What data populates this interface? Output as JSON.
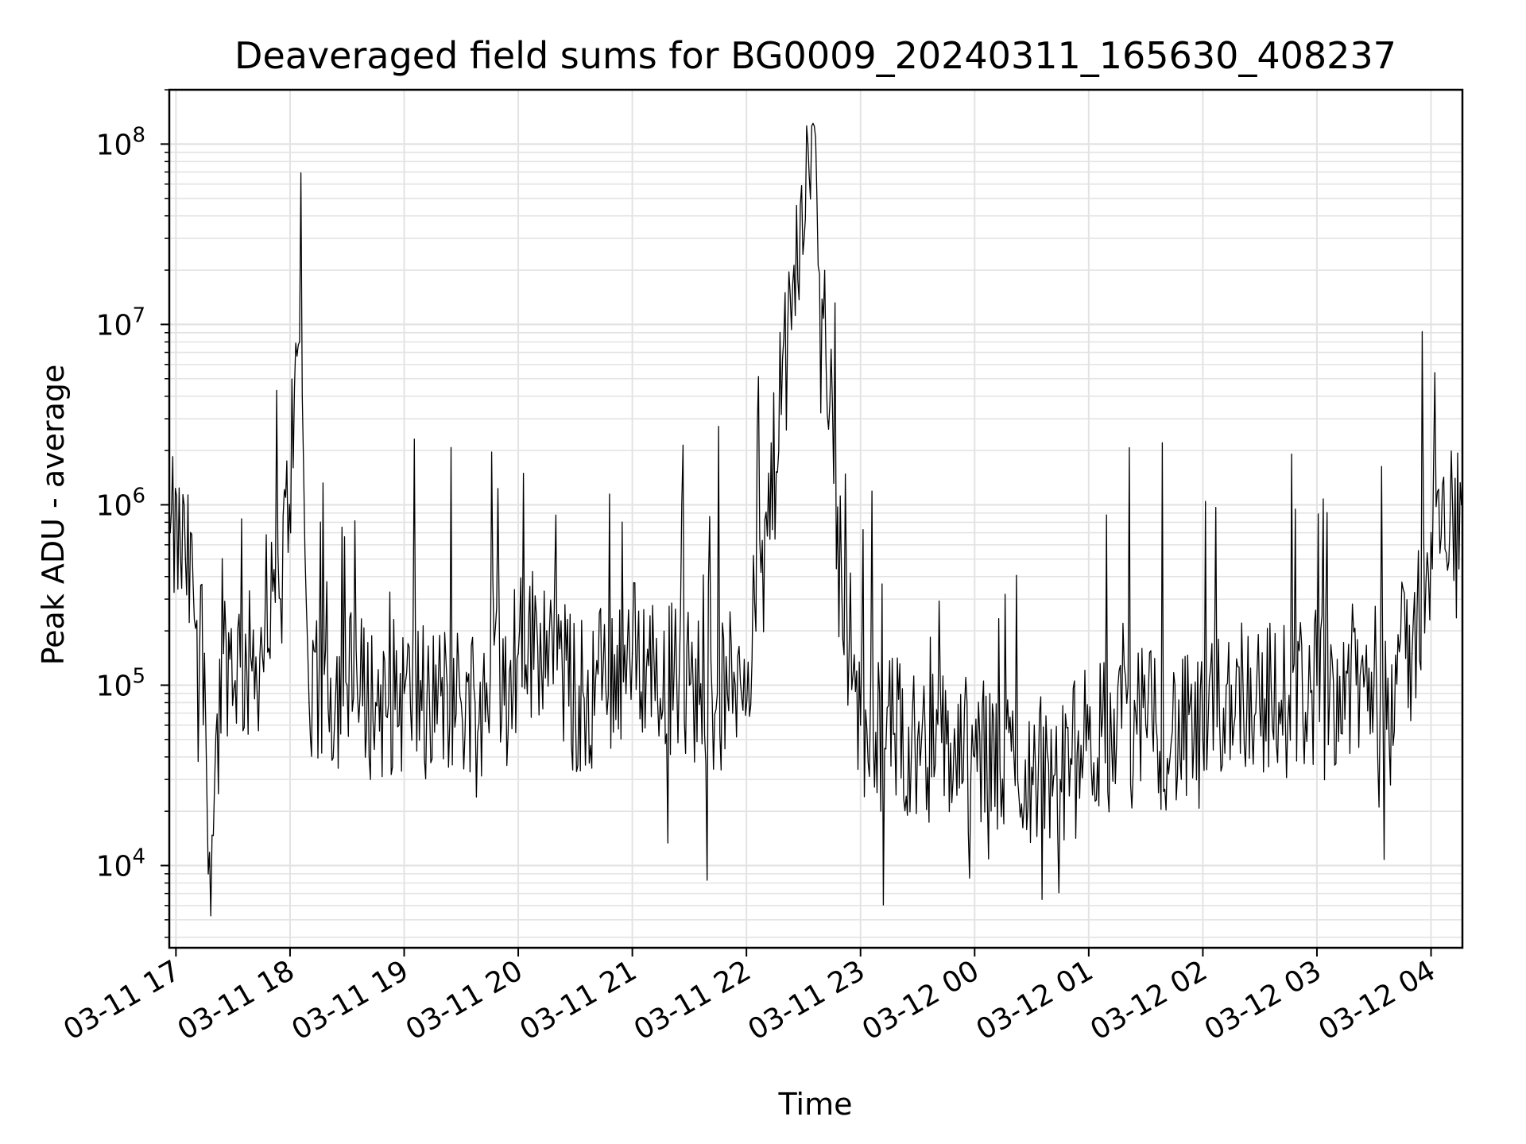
{
  "chart_data": {
    "type": "line",
    "title": "Deaveraged field sums for BG0009_20240311_165630_408237",
    "xlabel": "Time",
    "ylabel": "Peak ADU - average",
    "x_range": [
      "2024-03-11 16:56:30",
      "2024-03-12 04:16:30"
    ],
    "x_ticks": [
      {
        "x": "2024-03-11 17:00",
        "label": "03-11 17"
      },
      {
        "x": "2024-03-11 18:00",
        "label": "03-11 18"
      },
      {
        "x": "2024-03-11 19:00",
        "label": "03-11 19"
      },
      {
        "x": "2024-03-11 20:00",
        "label": "03-11 20"
      },
      {
        "x": "2024-03-11 21:00",
        "label": "03-11 21"
      },
      {
        "x": "2024-03-11 22:00",
        "label": "03-11 22"
      },
      {
        "x": "2024-03-11 23:00",
        "label": "03-11 23"
      },
      {
        "x": "2024-03-12 00:00",
        "label": "03-12 00"
      },
      {
        "x": "2024-03-12 01:00",
        "label": "03-12 01"
      },
      {
        "x": "2024-03-12 02:00",
        "label": "03-12 02"
      },
      {
        "x": "2024-03-12 03:00",
        "label": "03-12 03"
      },
      {
        "x": "2024-03-12 04:00",
        "label": "03-12 04"
      }
    ],
    "y_scale": "log",
    "ylim": [
      3500,
      200000000
    ],
    "y_ticks": [
      {
        "value": 10000,
        "base": "10",
        "exp": "4"
      },
      {
        "value": 100000,
        "base": "10",
        "exp": "5"
      },
      {
        "value": 1000000,
        "base": "10",
        "exp": "6"
      },
      {
        "value": 10000000,
        "base": "10",
        "exp": "7"
      },
      {
        "value": 100000000,
        "base": "10",
        "exp": "8"
      }
    ],
    "grid": true,
    "line_color": "#000000",
    "grid_color": "#e3e3e3",
    "series": [
      {
        "values": [
          {
            "x": "2024-03-11 16:57",
            "y": 700000
          },
          {
            "x": "2024-03-11 17:05",
            "y": 500000
          },
          {
            "x": "2024-03-11 17:15",
            "y": 150000
          },
          {
            "x": "2024-03-11 17:17",
            "y": 9000
          },
          {
            "x": "2024-03-11 17:25",
            "y": 150000
          },
          {
            "x": "2024-03-11 17:40",
            "y": 120000
          },
          {
            "x": "2024-03-11 17:55",
            "y": 300000
          },
          {
            "x": "2024-03-11 18:05",
            "y": 8000000
          },
          {
            "x": "2024-03-11 18:10",
            "y": 80000
          },
          {
            "x": "2024-03-11 18:30",
            "y": 100000
          },
          {
            "x": "2024-03-11 18:45",
            "y": 80000
          },
          {
            "x": "2024-03-11 19:00",
            "y": 90000
          },
          {
            "x": "2024-03-11 19:30",
            "y": 80000
          },
          {
            "x": "2024-03-11 20:00",
            "y": 150000
          },
          {
            "x": "2024-03-11 20:15",
            "y": 200000
          },
          {
            "x": "2024-03-11 20:30",
            "y": 80000
          },
          {
            "x": "2024-03-11 21:00",
            "y": 150000
          },
          {
            "x": "2024-03-11 21:30",
            "y": 100000
          },
          {
            "x": "2024-03-11 21:50",
            "y": 90000
          },
          {
            "x": "2024-03-11 22:05",
            "y": 200000
          },
          {
            "x": "2024-03-11 22:35",
            "y": 130000000
          },
          {
            "x": "2024-03-11 22:50",
            "y": 400000
          },
          {
            "x": "2024-03-11 23:00",
            "y": 60000
          },
          {
            "x": "2024-03-11 23:30",
            "y": 50000
          },
          {
            "x": "2024-03-12 00:00",
            "y": 40000
          },
          {
            "x": "2024-03-12 00:30",
            "y": 35000
          },
          {
            "x": "2024-03-12 00:45",
            "y": 30000
          },
          {
            "x": "2024-03-12 01:00",
            "y": 50000
          },
          {
            "x": "2024-03-12 01:30",
            "y": 60000
          },
          {
            "x": "2024-03-12 02:00",
            "y": 50000
          },
          {
            "x": "2024-03-12 02:15",
            "y": 100000
          },
          {
            "x": "2024-03-12 02:40",
            "y": 80000
          },
          {
            "x": "2024-03-12 03:00",
            "y": 100000
          },
          {
            "x": "2024-03-12 03:30",
            "y": 100000
          },
          {
            "x": "2024-03-12 03:50",
            "y": 150000
          },
          {
            "x": "2024-03-12 04:00",
            "y": 700000
          },
          {
            "x": "2024-03-12 04:10",
            "y": 800000
          },
          {
            "x": "2024-03-12 04:16",
            "y": 1000000
          }
        ]
      }
    ]
  }
}
